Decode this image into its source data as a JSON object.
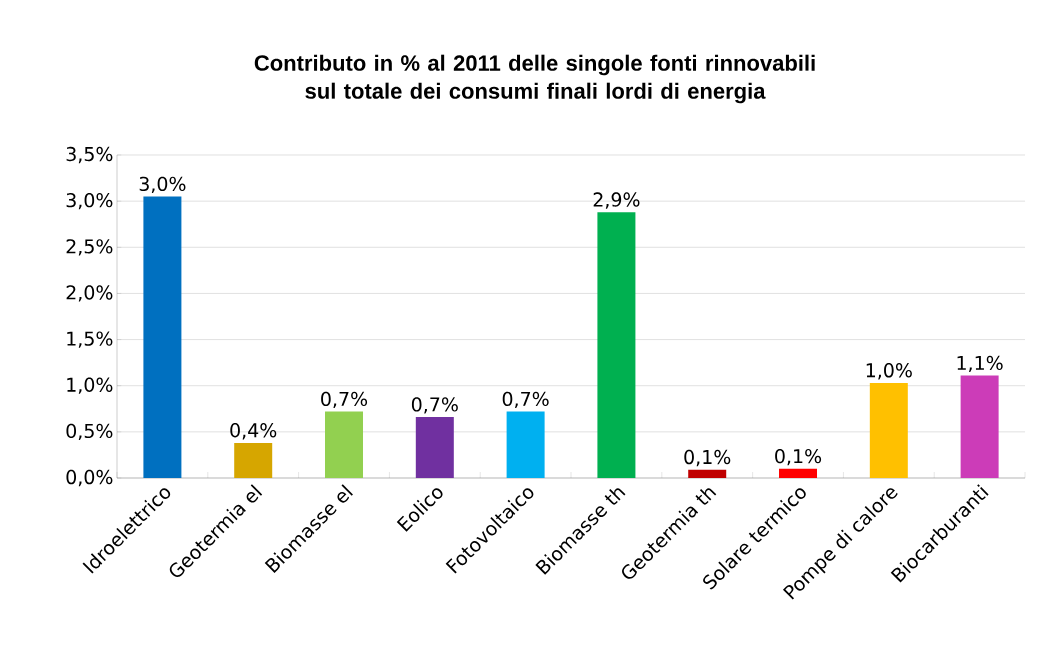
{
  "chart_data": {
    "type": "bar",
    "title": "Contributo in % al 2011 delle singole fonti rinnovabili sul totale dei consumi finali lordi di energia",
    "categories": [
      "Idroelettrico",
      "Geotermia el",
      "Biomasse el",
      "Eolico",
      "Fotovoltaico",
      "Biomasse th",
      "Geotermia th",
      "Solare termico",
      "Pompe di calore",
      "Biocarburanti"
    ],
    "values": [
      3.05,
      0.38,
      0.72,
      0.66,
      0.72,
      2.88,
      0.09,
      0.1,
      1.03,
      1.11
    ],
    "value_labels": [
      "3,0%",
      "0,4%",
      "0,7%",
      "0,7%",
      "0,7%",
      "2,9%",
      "0,1%",
      "0,1%",
      "1,0%",
      "1,1%"
    ],
    "colors": [
      "#0070c0",
      "#d6a600",
      "#92d050",
      "#7030a0",
      "#00b0f0",
      "#00b050",
      "#c00000",
      "#ff0000",
      "#ffc000",
      "#cc3cb8"
    ],
    "ylim": [
      0,
      3.5
    ],
    "yticks": [
      {
        "value": 0,
        "label": "0,0%"
      },
      {
        "value": 0.5,
        "label": "0,5%"
      },
      {
        "value": 1,
        "label": "1,0%"
      },
      {
        "value": 1.5,
        "label": "1,5%"
      },
      {
        "value": 2,
        "label": "2,0%"
      },
      {
        "value": 2.5,
        "label": "2,5%"
      },
      {
        "value": 3,
        "label": "3,0%"
      },
      {
        "value": 3.5,
        "label": "3,5%"
      }
    ],
    "grid": "y"
  }
}
